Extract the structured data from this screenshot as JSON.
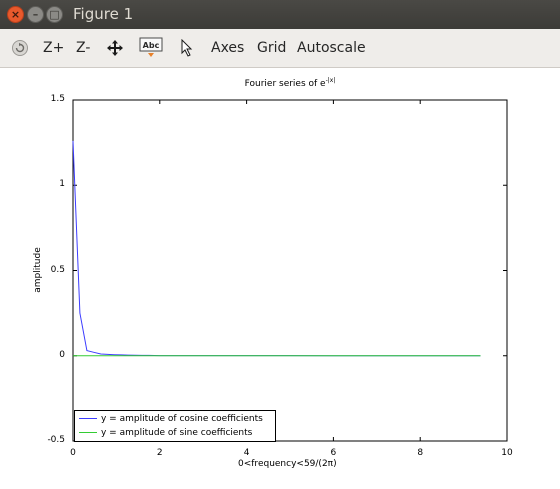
{
  "window": {
    "title": "Figure 1",
    "close_glyph": "×",
    "minimize_glyph": "–",
    "maximize_glyph": "□"
  },
  "toolbar": {
    "items": [
      {
        "name": "rotate-icon",
        "label": ""
      },
      {
        "name": "zoom-in-button",
        "label": "Z+"
      },
      {
        "name": "zoom-out-button",
        "label": "Z-"
      },
      {
        "name": "pan-icon",
        "label": ""
      },
      {
        "name": "text-icon",
        "label": "Abc"
      },
      {
        "name": "pointer-icon",
        "label": ""
      },
      {
        "name": "axes-button",
        "label": "Axes"
      },
      {
        "name": "grid-button",
        "label": "Grid"
      },
      {
        "name": "autoscale-button",
        "label": "Autoscale"
      }
    ]
  },
  "chart_data": {
    "type": "line",
    "title": "Fourier series of e",
    "title_superscript": "-|x|",
    "xlabel": "0<frequency<59/(2π)",
    "ylabel": "amplitude",
    "xlim": [
      0,
      10
    ],
    "ylim": [
      -0.5,
      1.5
    ],
    "xticks": [
      "0",
      "2",
      "4",
      "6",
      "8",
      "10"
    ],
    "yticks": [
      "-0.5",
      "0",
      "0.5",
      "1",
      "1.5"
    ],
    "grid": false,
    "legend_position": "bottom-left",
    "series": [
      {
        "name": "y = amplitude of cosine coefficients",
        "color": "#3c3cff",
        "x": [
          0.0,
          0.16,
          0.32,
          0.48,
          0.64,
          0.8,
          0.95,
          1.11,
          1.27,
          1.43,
          1.59,
          1.75,
          2.0,
          3.0,
          4.0,
          5.0,
          6.0,
          7.0,
          8.0,
          9.0,
          9.39
        ],
        "y": [
          1.26,
          0.25,
          0.03,
          0.02,
          0.01,
          0.008,
          0.006,
          0.005,
          0.004,
          0.003,
          0.002,
          0.002,
          0.001,
          0.001,
          0.001,
          0.001,
          0.0005,
          0.0005,
          0.0005,
          0.0005,
          0.0005
        ]
      },
      {
        "name": "y = amplitude of sine coefficients",
        "color": "#33cc33",
        "x": [
          0.0,
          9.39
        ],
        "y": [
          0.0,
          0.0
        ]
      }
    ]
  }
}
